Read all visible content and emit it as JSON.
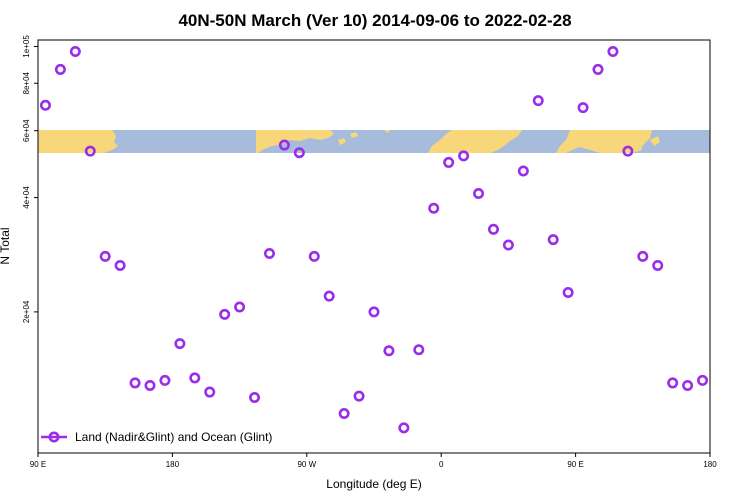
{
  "chart_data": {
    "type": "scatter",
    "title": "40N-50N March (Ver 10)   2014-09-06 to 2022-02-28",
    "xlabel": "Longitude (deg E)",
    "ylabel": "N Total",
    "x_ticks": [
      {
        "value": 90,
        "label": "90 E"
      },
      {
        "value": 180,
        "label": "180"
      },
      {
        "value": 270,
        "label": "90 W"
      },
      {
        "value": 360,
        "label": "0"
      },
      {
        "value": 450,
        "label": "90 E"
      },
      {
        "value": 540,
        "label": "180"
      }
    ],
    "y_ticks": [
      {
        "value": 20000,
        "label": "2e+04"
      },
      {
        "value": 40000,
        "label": "4e+04"
      },
      {
        "value": 60000,
        "label": "6e+04"
      },
      {
        "value": 80000,
        "label": "8e+04"
      },
      {
        "value": 100000,
        "label": "1e+05"
      }
    ],
    "xlim": [
      90,
      540
    ],
    "ylim": [
      8500,
      104000
    ],
    "y_scale": "log",
    "grid": false,
    "legend_position": "bottom-left",
    "colors": {
      "marker": "#9b2de8",
      "map_land": "#f8d77a",
      "map_ocean": "#a7bcdb"
    },
    "series": [
      {
        "name": "Land (Nadir&Glint) and Ocean (Glint)",
        "x": [
          95,
          105,
          115,
          125,
          135,
          145,
          155,
          165,
          175,
          185,
          195,
          205,
          215,
          225,
          235,
          245,
          255,
          265,
          275,
          285,
          295,
          305,
          315,
          325,
          335,
          345,
          355,
          365,
          375,
          385,
          395,
          405,
          415,
          425,
          435,
          445,
          455,
          465,
          475,
          485,
          495,
          505,
          515,
          525,
          535
        ],
        "y": [
          70000,
          87000,
          97000,
          53000,
          28000,
          26500,
          13000,
          12800,
          13200,
          16500,
          13400,
          12300,
          19700,
          20600,
          11900,
          28500,
          55000,
          52500,
          28000,
          22000,
          10800,
          12000,
          20000,
          15800,
          9900,
          15900,
          37500,
          49500,
          51500,
          41000,
          33000,
          30000,
          47000,
          72000,
          31000,
          22500,
          69000,
          87000,
          97000,
          53000,
          28000,
          26500,
          13000,
          12800,
          13200
        ],
        "marker": "open-circle"
      }
    ]
  }
}
